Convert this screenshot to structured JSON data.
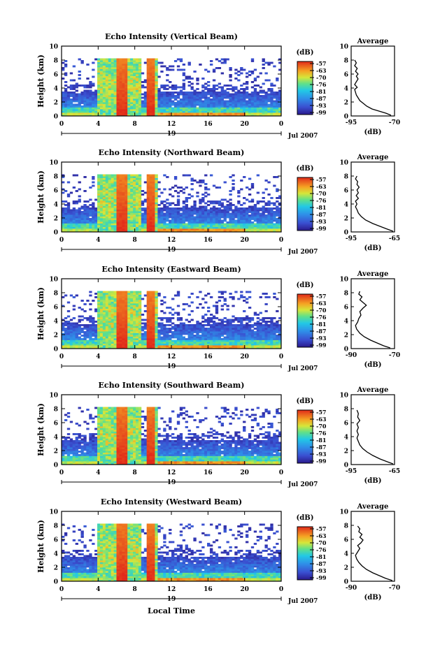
{
  "figure": {
    "xlabel_main": "Local Time",
    "date_label": "Jul 2007",
    "day_label": "19",
    "ylabel": "Height (km)",
    "unit_label": "(dB)",
    "avg_title": "Average",
    "avg_xlabel": "(dB)"
  },
  "chart_data": [
    {
      "type": "heatmap",
      "title": "Echo Intensity (Vertical Beam)",
      "ylabel": "Height (km)",
      "x_ticks": [
        "0",
        "4",
        "8",
        "12",
        "16",
        "20",
        "0"
      ],
      "xlim": [
        0,
        24
      ],
      "y_ticks": [
        "0",
        "2",
        "4",
        "6",
        "8",
        "10"
      ],
      "ylim": [
        0,
        10
      ],
      "colorbar_ticks": [
        "-57",
        "-63",
        "-70",
        "-76",
        "-81",
        "-87",
        "-93",
        "-99"
      ],
      "avg_x_ticks": [
        "-95",
        "-70"
      ],
      "avg_xlim": [
        -95,
        -70
      ],
      "profile": [
        [
          -72,
          0.1
        ],
        [
          -75,
          0.4
        ],
        [
          -79,
          0.7
        ],
        [
          -83,
          1.0
        ],
        [
          -86,
          1.4
        ],
        [
          -88,
          1.8
        ],
        [
          -90,
          2.2
        ],
        [
          -91,
          2.6
        ],
        [
          -92,
          3.0
        ],
        [
          -92.5,
          3.4
        ],
        [
          -93,
          3.8
        ],
        [
          -91.5,
          4.1
        ],
        [
          -93,
          4.5
        ],
        [
          -92,
          4.9
        ],
        [
          -91,
          5.3
        ],
        [
          -92,
          5.7
        ],
        [
          -91,
          6.0
        ],
        [
          -92.5,
          6.4
        ],
        [
          -91.5,
          6.8
        ],
        [
          -93,
          7.2
        ],
        [
          -92,
          7.6
        ],
        [
          -93,
          8.0
        ]
      ]
    },
    {
      "type": "heatmap",
      "title": "Echo Intensity (Northward Beam)",
      "ylabel": "Height (km)",
      "x_ticks": [
        "0",
        "4",
        "8",
        "12",
        "16",
        "20",
        "0"
      ],
      "xlim": [
        0,
        24
      ],
      "y_ticks": [
        "0",
        "2",
        "4",
        "6",
        "8",
        "10"
      ],
      "ylim": [
        0,
        10
      ],
      "colorbar_ticks": [
        "-57",
        "-63",
        "-70",
        "-76",
        "-81",
        "-87",
        "-93",
        "-99"
      ],
      "avg_x_ticks": [
        "-95",
        "-65"
      ],
      "avg_xlim": [
        -95,
        -65
      ],
      "profile": [
        [
          -66,
          0.1
        ],
        [
          -70,
          0.4
        ],
        [
          -75,
          0.8
        ],
        [
          -80,
          1.2
        ],
        [
          -85,
          1.7
        ],
        [
          -88,
          2.2
        ],
        [
          -90,
          2.7
        ],
        [
          -91,
          3.2
        ],
        [
          -92,
          3.6
        ],
        [
          -91,
          4.0
        ],
        [
          -92,
          4.4
        ],
        [
          -90,
          4.8
        ],
        [
          -91.5,
          5.2
        ],
        [
          -90,
          5.6
        ],
        [
          -91,
          6.0
        ],
        [
          -89.5,
          6.4
        ],
        [
          -91,
          6.8
        ],
        [
          -90.5,
          7.2
        ],
        [
          -92,
          7.6
        ],
        [
          -91,
          8.0
        ]
      ]
    },
    {
      "type": "heatmap",
      "title": "Echo Intensity (Eastward Beam)",
      "ylabel": "Height (km)",
      "x_ticks": [
        "0",
        "4",
        "8",
        "12",
        "16",
        "20",
        "0"
      ],
      "xlim": [
        0,
        24
      ],
      "y_ticks": [
        "0",
        "2",
        "4",
        "6",
        "8",
        "10"
      ],
      "ylim": [
        0,
        10
      ],
      "colorbar_ticks": [
        "-57",
        "-63",
        "-70",
        "-76",
        "-81",
        "-87",
        "-93",
        "-99"
      ],
      "avg_x_ticks": [
        "-90",
        "-70"
      ],
      "avg_xlim": [
        -90,
        -70
      ],
      "profile": [
        [
          -72,
          0.1
        ],
        [
          -75,
          0.4
        ],
        [
          -78,
          0.8
        ],
        [
          -81,
          1.2
        ],
        [
          -84,
          1.7
        ],
        [
          -86,
          2.2
        ],
        [
          -87.5,
          2.8
        ],
        [
          -88,
          3.3
        ],
        [
          -87,
          3.8
        ],
        [
          -86.5,
          4.3
        ],
        [
          -85.5,
          4.8
        ],
        [
          -86,
          5.3
        ],
        [
          -84.5,
          5.8
        ],
        [
          -83,
          6.2
        ],
        [
          -84.5,
          6.6
        ],
        [
          -86,
          7.0
        ],
        [
          -85,
          7.4
        ],
        [
          -86.5,
          7.8
        ],
        [
          -86,
          8.2
        ]
      ]
    },
    {
      "type": "heatmap",
      "title": "Echo Intensity (Southward Beam)",
      "ylabel": "Height (km)",
      "x_ticks": [
        "0",
        "4",
        "8",
        "12",
        "16",
        "20",
        "0"
      ],
      "xlim": [
        0,
        24
      ],
      "y_ticks": [
        "0",
        "2",
        "4",
        "6",
        "8",
        "10"
      ],
      "ylim": [
        0,
        10
      ],
      "colorbar_ticks": [
        "-57",
        "-63",
        "-70",
        "-76",
        "-81",
        "-87",
        "-93",
        "-99"
      ],
      "avg_x_ticks": [
        "-95",
        "-65"
      ],
      "avg_xlim": [
        -95,
        -65
      ],
      "profile": [
        [
          -66,
          0.1
        ],
        [
          -70,
          0.4
        ],
        [
          -75,
          0.8
        ],
        [
          -80,
          1.3
        ],
        [
          -84,
          1.8
        ],
        [
          -87,
          2.3
        ],
        [
          -89,
          2.8
        ],
        [
          -90,
          3.3
        ],
        [
          -91,
          3.8
        ],
        [
          -90,
          4.3
        ],
        [
          -91,
          4.8
        ],
        [
          -90,
          5.3
        ],
        [
          -91,
          5.8
        ],
        [
          -89,
          6.3
        ],
        [
          -90.5,
          6.8
        ],
        [
          -90,
          7.3
        ],
        [
          -91,
          7.8
        ]
      ]
    },
    {
      "type": "heatmap",
      "title": "Echo Intensity (Westward Beam)",
      "ylabel": "Height (km)",
      "x_ticks": [
        "0",
        "4",
        "8",
        "12",
        "16",
        "20",
        "0"
      ],
      "xlim": [
        0,
        24
      ],
      "y_ticks": [
        "0",
        "2",
        "4",
        "6",
        "8",
        "10"
      ],
      "ylim": [
        0,
        10
      ],
      "colorbar_ticks": [
        "-57",
        "-63",
        "-70",
        "-76",
        "-81",
        "-87",
        "-93",
        "-99"
      ],
      "avg_x_ticks": [
        "-90",
        "-70"
      ],
      "avg_xlim": [
        -90,
        -70
      ],
      "profile": [
        [
          -71,
          0.1
        ],
        [
          -74,
          0.4
        ],
        [
          -77,
          0.8
        ],
        [
          -80,
          1.2
        ],
        [
          -83,
          1.7
        ],
        [
          -85,
          2.2
        ],
        [
          -86.5,
          2.7
        ],
        [
          -87.5,
          3.2
        ],
        [
          -88,
          3.7
        ],
        [
          -87,
          4.2
        ],
        [
          -86,
          4.7
        ],
        [
          -87,
          5.1
        ],
        [
          -85.5,
          5.5
        ],
        [
          -84.5,
          5.9
        ],
        [
          -86,
          6.3
        ],
        [
          -85,
          6.7
        ],
        [
          -86.5,
          7.1
        ],
        [
          -86,
          7.5
        ],
        [
          -87,
          7.9
        ]
      ]
    }
  ]
}
